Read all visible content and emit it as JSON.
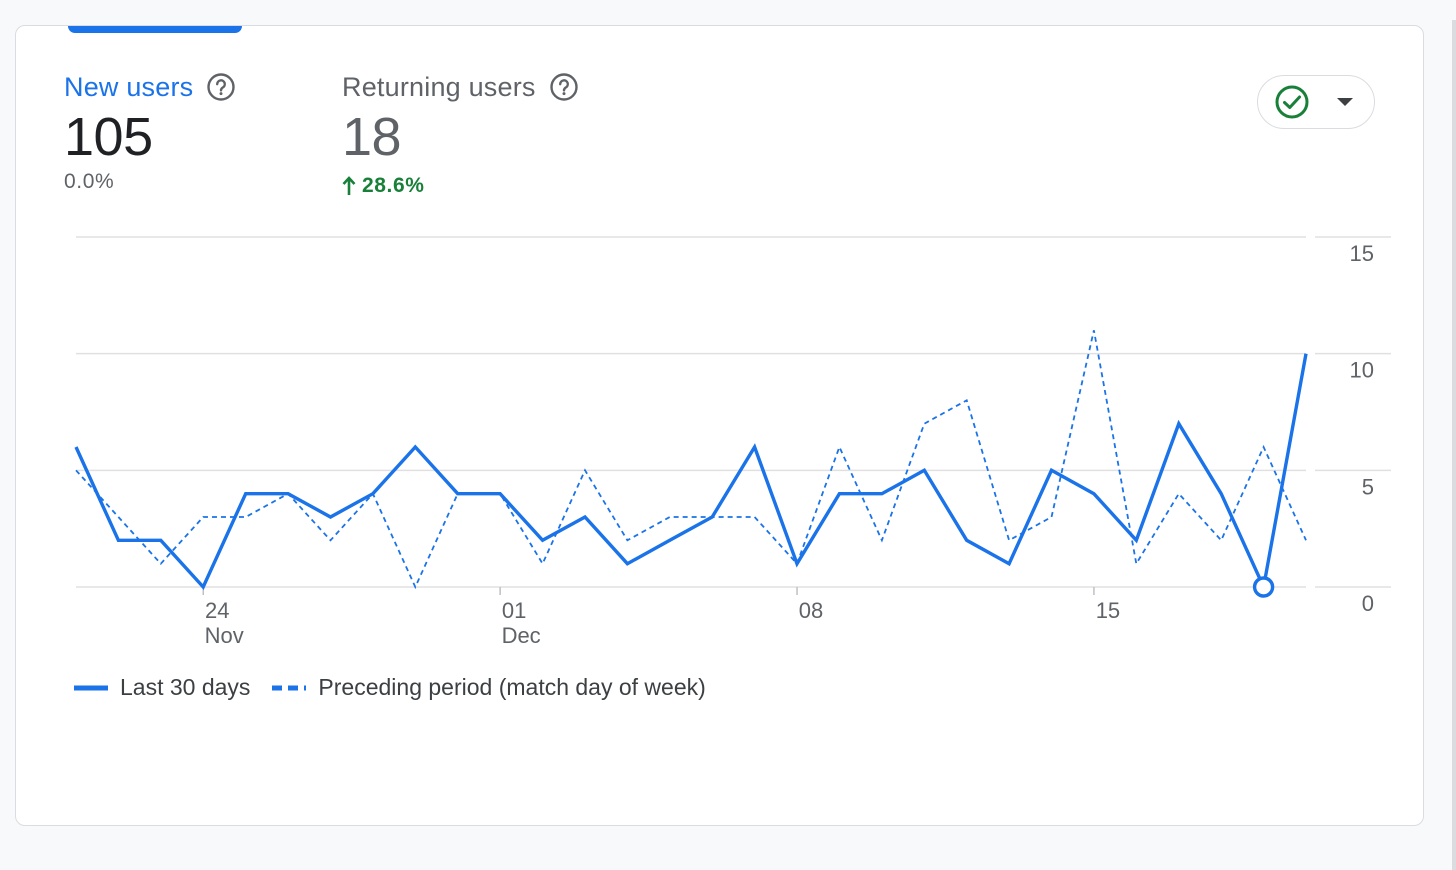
{
  "metrics": [
    {
      "label": "New users",
      "value": "105",
      "change": "0.0%",
      "active": true,
      "help_icon": "help-circle-icon"
    },
    {
      "label": "Returning users",
      "value": "18",
      "change": "28.6%",
      "change_direction": "up",
      "active": false,
      "help_icon": "help-circle-icon",
      "change_icon": "arrow-up-icon"
    }
  ],
  "status_button": {
    "icon": "check-circle-icon",
    "dropdown_icon": "caret-down-icon"
  },
  "colors": {
    "accent": "#1a73e8",
    "positive": "#188038",
    "muted": "#5f6368",
    "grid": "#e0e0e0"
  },
  "legend": {
    "series1": "Last 30 days",
    "series2": "Preceding period (match day of week)"
  },
  "chart_data": {
    "type": "line",
    "x": [
      "Nov 21",
      "Nov 22",
      "Nov 23",
      "Nov 24",
      "Nov 25",
      "Nov 26",
      "Nov 27",
      "Nov 28",
      "Nov 29",
      "Nov 30",
      "Dec 01",
      "Dec 02",
      "Dec 03",
      "Dec 04",
      "Dec 05",
      "Dec 06",
      "Dec 07",
      "Dec 08",
      "Dec 09",
      "Dec 10",
      "Dec 11",
      "Dec 12",
      "Dec 13",
      "Dec 14",
      "Dec 15",
      "Dec 16",
      "Dec 17",
      "Dec 18",
      "Dec 19",
      "Dec 20"
    ],
    "x_ticks": [
      {
        "index": 3,
        "label": "24",
        "sublabel": "Nov"
      },
      {
        "index": 10,
        "label": "01",
        "sublabel": "Dec"
      },
      {
        "index": 17,
        "label": "08",
        "sublabel": ""
      },
      {
        "index": 24,
        "label": "15",
        "sublabel": ""
      }
    ],
    "series": [
      {
        "name": "Last 30 days",
        "style": "solid",
        "values": [
          6,
          2,
          2,
          0,
          4,
          4,
          3,
          4,
          6,
          4,
          4,
          2,
          3,
          1,
          2,
          3,
          6,
          1,
          4,
          4,
          5,
          2,
          1,
          5,
          4,
          2,
          7,
          4,
          0,
          10
        ]
      },
      {
        "name": "Preceding period (match day of week)",
        "style": "dashed",
        "values": [
          5,
          3,
          1,
          3,
          3,
          4,
          2,
          4,
          0,
          4,
          4,
          1,
          5,
          2,
          3,
          3,
          3,
          1,
          6,
          2,
          7,
          8,
          2,
          3,
          11,
          1,
          4,
          2,
          6,
          2
        ]
      }
    ],
    "highlight_index": 28,
    "ylim": [
      0,
      15
    ],
    "yticks": [
      0,
      5,
      10,
      15
    ],
    "grid": true,
    "legend_position": "bottom-left"
  }
}
